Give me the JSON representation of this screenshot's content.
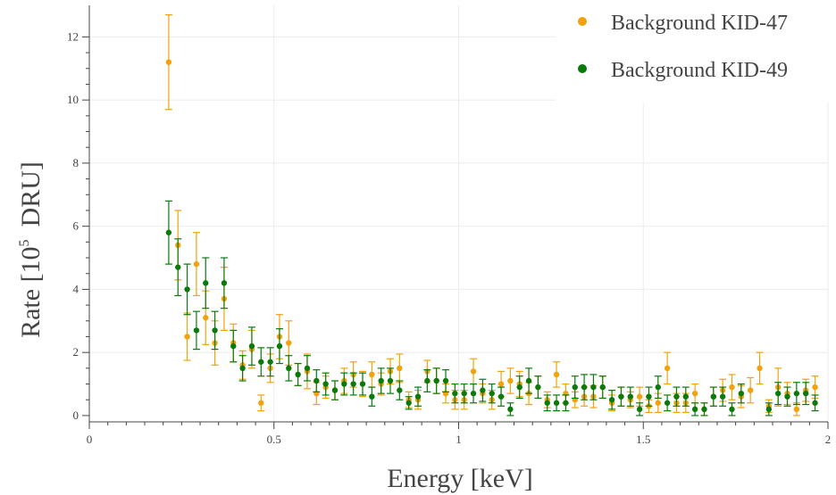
{
  "chart_data": {
    "type": "scatter",
    "xlabel": "Energy [keV]",
    "ylabel_prefix": "Rate [10",
    "ylabel_sup": "5",
    "ylabel_suffix": "DRU]",
    "xlim": [
      0,
      2
    ],
    "ylim": [
      -0.2,
      13
    ],
    "xticks": [
      0,
      0.5,
      1,
      1.5,
      2
    ],
    "xtick_labels": [
      "0",
      "0.5",
      "1",
      "1.5",
      "2"
    ],
    "yticks": [
      0,
      2,
      4,
      6,
      8,
      10,
      12
    ],
    "ytick_labels": [
      "0",
      "2",
      "4",
      "6",
      "8",
      "10",
      "12"
    ],
    "grid": true,
    "legend_position": "top-right",
    "colors": {
      "KID-47": "#f2a20c",
      "KID-49": "#0b7a0b"
    },
    "series": [
      {
        "name": "Background KID-47",
        "color": "#f2a20c",
        "points": [
          [
            0.215,
            11.2,
            1.5
          ],
          [
            0.24,
            5.4,
            1.1
          ],
          [
            0.265,
            2.5,
            0.75
          ],
          [
            0.29,
            4.8,
            1.0
          ],
          [
            0.315,
            3.1,
            0.85
          ],
          [
            0.34,
            2.3,
            0.7
          ],
          [
            0.365,
            3.7,
            1.0
          ],
          [
            0.39,
            2.3,
            0.6
          ],
          [
            0.415,
            1.6,
            0.45
          ],
          [
            0.44,
            2.1,
            0.6
          ],
          [
            0.465,
            0.4,
            0.25
          ],
          [
            0.49,
            1.5,
            0.45
          ],
          [
            0.515,
            2.5,
            0.7
          ],
          [
            0.54,
            2.3,
            0.7
          ],
          [
            0.565,
            1.3,
            0.35
          ],
          [
            0.59,
            1.4,
            0.55
          ],
          [
            0.615,
            0.7,
            0.35
          ],
          [
            0.64,
            0.9,
            0.35
          ],
          [
            0.665,
            0.8,
            0.3
          ],
          [
            0.69,
            1.1,
            0.4
          ],
          [
            0.715,
            1.3,
            0.4
          ],
          [
            0.74,
            1.0,
            0.4
          ],
          [
            0.765,
            1.3,
            0.4
          ],
          [
            0.79,
            1.0,
            0.35
          ],
          [
            0.815,
            1.4,
            0.4
          ],
          [
            0.84,
            1.5,
            0.45
          ],
          [
            0.865,
            0.5,
            0.25
          ],
          [
            0.89,
            0.5,
            0.3
          ],
          [
            0.915,
            1.4,
            0.35
          ],
          [
            0.94,
            1.1,
            0.4
          ],
          [
            0.965,
            0.7,
            0.3
          ],
          [
            0.99,
            0.5,
            0.3
          ],
          [
            1.015,
            0.5,
            0.3
          ],
          [
            1.04,
            1.4,
            0.4
          ],
          [
            1.065,
            0.7,
            0.3
          ],
          [
            1.09,
            0.5,
            0.3
          ],
          [
            1.115,
            1.0,
            0.4
          ],
          [
            1.14,
            1.1,
            0.4
          ],
          [
            1.165,
            1.0,
            0.4
          ],
          [
            1.19,
            0.7,
            0.35
          ],
          [
            1.215,
            0.9,
            0.35
          ],
          [
            1.24,
            0.5,
            0.25
          ],
          [
            1.265,
            1.3,
            0.4
          ],
          [
            1.29,
            0.7,
            0.3
          ],
          [
            1.315,
            0.5,
            0.25
          ],
          [
            1.34,
            0.6,
            0.3
          ],
          [
            1.365,
            0.6,
            0.35
          ],
          [
            1.39,
            0.9,
            0.35
          ],
          [
            1.415,
            0.4,
            0.25
          ],
          [
            1.44,
            0.6,
            0.3
          ],
          [
            1.465,
            0.5,
            0.25
          ],
          [
            1.49,
            0.6,
            0.3
          ],
          [
            1.515,
            0.3,
            0.2
          ],
          [
            1.54,
            0.4,
            0.3
          ],
          [
            1.565,
            1.5,
            0.5
          ],
          [
            1.59,
            0.4,
            0.3
          ],
          [
            1.615,
            0.4,
            0.3
          ],
          [
            1.64,
            0.7,
            0.3
          ],
          [
            1.665,
            0.2,
            0.2
          ],
          [
            1.69,
            0.6,
            0.3
          ],
          [
            1.715,
            0.8,
            0.35
          ],
          [
            1.74,
            0.9,
            0.4
          ],
          [
            1.765,
            0.6,
            0.35
          ],
          [
            1.79,
            0.8,
            0.4
          ],
          [
            1.815,
            1.5,
            0.5
          ],
          [
            1.84,
            0.3,
            0.2
          ],
          [
            1.865,
            0.9,
            0.6
          ],
          [
            1.89,
            0.7,
            0.35
          ],
          [
            1.915,
            0.2,
            0.2
          ],
          [
            1.94,
            0.8,
            0.35
          ],
          [
            1.965,
            0.9,
            0.35
          ]
        ]
      },
      {
        "name": "Background KID-49",
        "color": "#0b7a0b",
        "points": [
          [
            0.215,
            5.8,
            1.0
          ],
          [
            0.24,
            4.7,
            0.9
          ],
          [
            0.265,
            4.0,
            0.8
          ],
          [
            0.29,
            2.7,
            0.6
          ],
          [
            0.315,
            4.2,
            0.8
          ],
          [
            0.34,
            2.7,
            0.6
          ],
          [
            0.365,
            4.2,
            0.8
          ],
          [
            0.39,
            2.2,
            0.5
          ],
          [
            0.415,
            1.5,
            0.4
          ],
          [
            0.44,
            2.2,
            0.6
          ],
          [
            0.465,
            1.7,
            0.45
          ],
          [
            0.49,
            1.7,
            0.45
          ],
          [
            0.515,
            2.2,
            0.55
          ],
          [
            0.54,
            1.5,
            0.4
          ],
          [
            0.565,
            1.3,
            0.35
          ],
          [
            0.59,
            1.5,
            0.4
          ],
          [
            0.615,
            1.1,
            0.35
          ],
          [
            0.64,
            1.0,
            0.35
          ],
          [
            0.665,
            0.8,
            0.3
          ],
          [
            0.69,
            1.0,
            0.35
          ],
          [
            0.715,
            1.0,
            0.35
          ],
          [
            0.74,
            1.0,
            0.35
          ],
          [
            0.765,
            0.6,
            0.3
          ],
          [
            0.79,
            1.1,
            0.4
          ],
          [
            0.815,
            1.1,
            0.4
          ],
          [
            0.84,
            0.8,
            0.3
          ],
          [
            0.865,
            0.4,
            0.2
          ],
          [
            0.89,
            0.6,
            0.3
          ],
          [
            0.915,
            1.1,
            0.35
          ],
          [
            0.94,
            1.1,
            0.4
          ],
          [
            0.965,
            1.1,
            0.35
          ],
          [
            0.99,
            0.7,
            0.3
          ],
          [
            1.015,
            0.7,
            0.3
          ],
          [
            1.04,
            0.7,
            0.3
          ],
          [
            1.065,
            0.8,
            0.35
          ],
          [
            1.09,
            0.7,
            0.3
          ],
          [
            1.115,
            0.6,
            0.3
          ],
          [
            1.14,
            0.2,
            0.2
          ],
          [
            1.165,
            0.9,
            0.35
          ],
          [
            1.19,
            1.1,
            0.4
          ],
          [
            1.215,
            0.9,
            0.35
          ],
          [
            1.24,
            0.4,
            0.25
          ],
          [
            1.265,
            0.4,
            0.25
          ],
          [
            1.29,
            0.4,
            0.25
          ],
          [
            1.315,
            0.9,
            0.35
          ],
          [
            1.34,
            0.9,
            0.4
          ],
          [
            1.365,
            0.9,
            0.4
          ],
          [
            1.39,
            0.9,
            0.35
          ],
          [
            1.415,
            0.5,
            0.3
          ],
          [
            1.44,
            0.6,
            0.3
          ],
          [
            1.465,
            0.6,
            0.3
          ],
          [
            1.49,
            0.2,
            0.2
          ],
          [
            1.515,
            0.6,
            0.3
          ],
          [
            1.54,
            0.9,
            0.35
          ],
          [
            1.565,
            0.4,
            0.25
          ],
          [
            1.59,
            0.6,
            0.3
          ],
          [
            1.615,
            0.6,
            0.3
          ],
          [
            1.64,
            0.2,
            0.2
          ],
          [
            1.665,
            0.2,
            0.2
          ],
          [
            1.69,
            0.6,
            0.3
          ],
          [
            1.715,
            0.6,
            0.3
          ],
          [
            1.74,
            0.2,
            0.2
          ],
          [
            1.765,
            0.7,
            0.3
          ],
          [
            1.84,
            0.2,
            0.2
          ],
          [
            1.865,
            0.7,
            0.35
          ],
          [
            1.89,
            0.6,
            0.3
          ],
          [
            1.915,
            0.7,
            0.35
          ],
          [
            1.94,
            0.7,
            0.35
          ],
          [
            1.965,
            0.4,
            0.25
          ]
        ]
      }
    ]
  }
}
